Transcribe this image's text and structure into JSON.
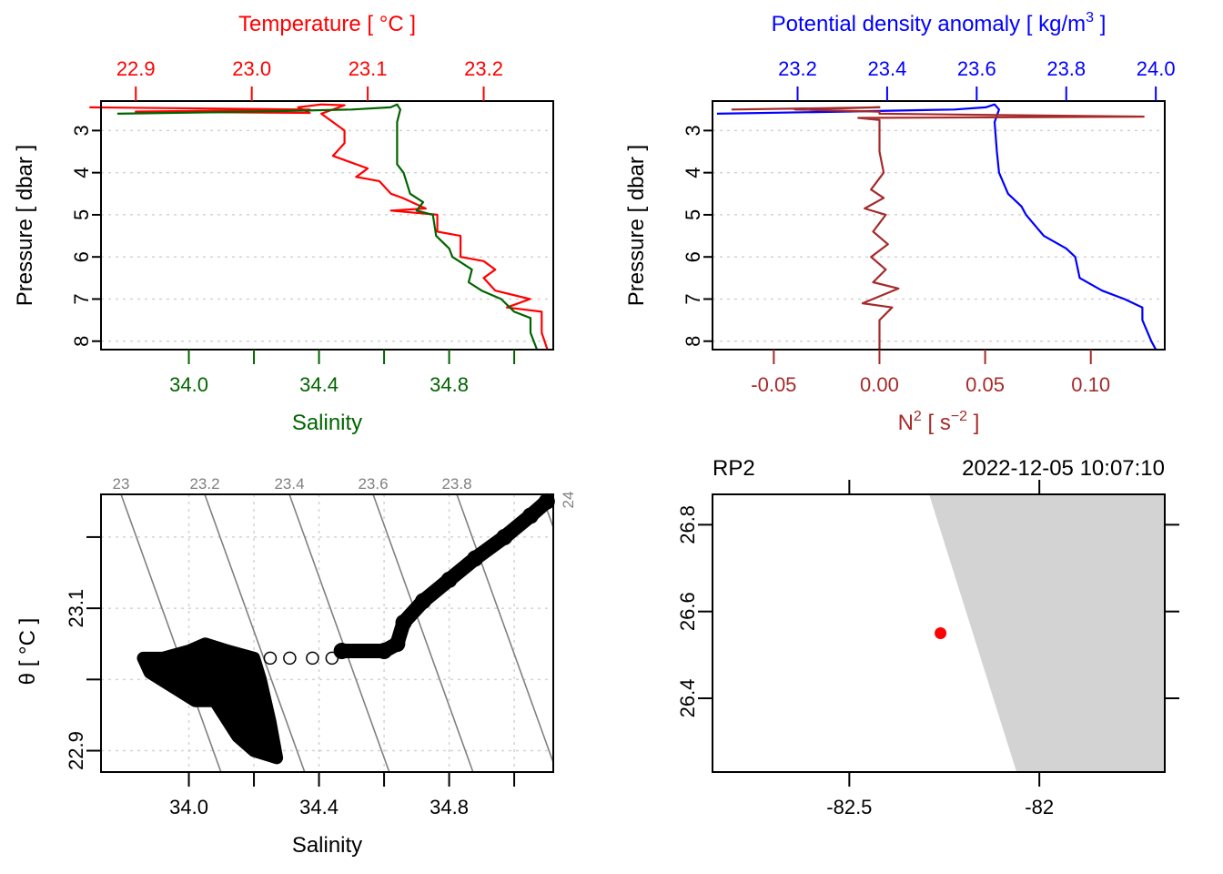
{
  "colors": {
    "temperature": "#ff0000",
    "salinity": "#006400",
    "density": "#0000ff",
    "n2": "#a52a2a",
    "isopycnal": "#808080",
    "grid": "#d3d3d3",
    "land": "#d3d3d3",
    "station": "#ff0000",
    "axis": "#000000"
  },
  "chart_data": [
    {
      "id": "ts-profile",
      "type": "line",
      "title": "",
      "ylabel": "Pressure [ dbar ]",
      "ylim": [
        8.2,
        2.3
      ],
      "yticks": [
        3,
        4,
        5,
        6,
        7,
        8
      ],
      "ytick_labels": [
        "3",
        "4",
        "5",
        "6",
        "7",
        "8"
      ],
      "grid": "horizontal dotted",
      "top_axis": {
        "label": "Temperature [ °C ]",
        "range": [
          22.87,
          23.26
        ],
        "ticks": [
          22.9,
          23.0,
          23.1,
          23.2
        ],
        "tick_labels": [
          "22.9",
          "23.0",
          "23.1",
          "23.2"
        ]
      },
      "bottom_axis": {
        "label": "Salinity",
        "range": [
          33.73,
          35.12
        ],
        "ticks": [
          34.0,
          34.2,
          34.4,
          34.6,
          34.8,
          35.0
        ],
        "tick_labels": [
          "34.0",
          "",
          "34.4",
          "",
          "34.8",
          ""
        ]
      },
      "series": [
        {
          "name": "Temperature",
          "axis": "top",
          "points": [
            [
              22.86,
              2.45
            ],
            [
              23.05,
              2.5
            ],
            [
              22.9,
              2.55
            ],
            [
              23.05,
              2.58
            ],
            [
              23.04,
              2.45
            ],
            [
              23.06,
              2.38
            ],
            [
              23.08,
              2.4
            ],
            [
              23.06,
              2.6
            ],
            [
              23.07,
              2.8
            ],
            [
              23.08,
              3.0
            ],
            [
              23.08,
              3.3
            ],
            [
              23.07,
              3.6
            ],
            [
              23.08,
              3.7
            ],
            [
              23.1,
              3.9
            ],
            [
              23.09,
              4.1
            ],
            [
              23.11,
              4.2
            ],
            [
              23.12,
              4.5
            ],
            [
              23.13,
              4.6
            ],
            [
              23.15,
              4.85
            ],
            [
              23.12,
              4.9
            ],
            [
              23.16,
              5.0
            ],
            [
              23.16,
              5.4
            ],
            [
              23.18,
              5.5
            ],
            [
              23.18,
              6.0
            ],
            [
              23.2,
              6.1
            ],
            [
              23.21,
              6.3
            ],
            [
              23.2,
              6.5
            ],
            [
              23.21,
              6.8
            ],
            [
              23.24,
              7.0
            ],
            [
              23.22,
              7.2
            ],
            [
              23.25,
              7.3
            ],
            [
              23.25,
              7.8
            ],
            [
              23.255,
              8.2
            ]
          ]
        },
        {
          "name": "Salinity",
          "axis": "bottom",
          "points": [
            [
              33.78,
              2.6
            ],
            [
              34.2,
              2.55
            ],
            [
              34.5,
              2.5
            ],
            [
              34.62,
              2.45
            ],
            [
              34.64,
              2.38
            ],
            [
              34.65,
              2.5
            ],
            [
              34.64,
              2.8
            ],
            [
              34.64,
              3.3
            ],
            [
              34.64,
              3.8
            ],
            [
              34.66,
              4.0
            ],
            [
              34.68,
              4.5
            ],
            [
              34.72,
              4.7
            ],
            [
              34.7,
              4.9
            ],
            [
              34.75,
              5.0
            ],
            [
              34.76,
              5.5
            ],
            [
              34.8,
              5.8
            ],
            [
              34.81,
              6.0
            ],
            [
              34.87,
              6.3
            ],
            [
              34.86,
              6.6
            ],
            [
              34.9,
              6.8
            ],
            [
              34.96,
              7.0
            ],
            [
              35.0,
              7.3
            ],
            [
              35.05,
              7.45
            ],
            [
              35.05,
              7.8
            ],
            [
              35.07,
              8.2
            ]
          ]
        }
      ]
    },
    {
      "id": "density-n2-profile",
      "type": "line",
      "title": "",
      "ylabel": "Pressure [ dbar ]",
      "ylim": [
        8.2,
        2.3
      ],
      "yticks": [
        3,
        4,
        5,
        6,
        7,
        8
      ],
      "ytick_labels": [
        "3",
        "4",
        "5",
        "6",
        "7",
        "8"
      ],
      "grid": "horizontal dotted",
      "top_axis": {
        "label": "Potential density anomaly [ kg/m³ ]",
        "label_parts": {
          "main": "Potential density anomaly [ kg/m",
          "sup": "3",
          "end": " ]"
        },
        "range": [
          23.01,
          24.02
        ],
        "ticks": [
          23.2,
          23.4,
          23.6,
          23.8,
          24.0
        ],
        "tick_labels": [
          "23.2",
          "23.4",
          "23.6",
          "23.8",
          "24.0"
        ]
      },
      "bottom_axis": {
        "label": "N² [ s⁻² ]",
        "label_parts": {
          "main": "N",
          "sup": "2",
          "mid": " [ s",
          "sup2": "−2",
          "end": " ]"
        },
        "range": [
          -0.079,
          0.135
        ],
        "ticks": [
          -0.05,
          0.0,
          0.05,
          0.1
        ],
        "tick_labels": [
          "-0.05",
          "0.00",
          "0.05",
          "0.10"
        ]
      },
      "series": [
        {
          "name": "Potential density anomaly",
          "axis": "top",
          "points": [
            [
              23.02,
              2.6
            ],
            [
              23.3,
              2.55
            ],
            [
              23.55,
              2.5
            ],
            [
              23.62,
              2.45
            ],
            [
              23.64,
              2.38
            ],
            [
              23.65,
              2.5
            ],
            [
              23.64,
              2.8
            ],
            [
              23.645,
              3.5
            ],
            [
              23.65,
              4.0
            ],
            [
              23.67,
              4.5
            ],
            [
              23.7,
              4.8
            ],
            [
              23.71,
              5.0
            ],
            [
              23.75,
              5.5
            ],
            [
              23.8,
              5.8
            ],
            [
              23.82,
              6.0
            ],
            [
              23.83,
              6.5
            ],
            [
              23.88,
              6.8
            ],
            [
              23.93,
              7.0
            ],
            [
              23.97,
              7.2
            ],
            [
              23.97,
              7.5
            ],
            [
              23.99,
              8.0
            ],
            [
              24.0,
              8.2
            ]
          ]
        },
        {
          "name": "N2",
          "axis": "bottom",
          "points": [
            [
              -0.07,
              2.5
            ],
            [
              0.0,
              2.45
            ],
            [
              -0.04,
              2.5
            ],
            [
              0.0,
              2.55
            ],
            [
              0.0,
              2.6
            ],
            [
              0.125,
              2.67
            ],
            [
              -0.01,
              2.7
            ],
            [
              0.0,
              2.75
            ],
            [
              0.0,
              3.5
            ],
            [
              0.002,
              4.0
            ],
            [
              -0.004,
              4.4
            ],
            [
              0.002,
              4.6
            ],
            [
              -0.007,
              4.85
            ],
            [
              0.003,
              5.0
            ],
            [
              -0.003,
              5.4
            ],
            [
              0.004,
              5.7
            ],
            [
              -0.004,
              6.0
            ],
            [
              0.003,
              6.3
            ],
            [
              -0.003,
              6.6
            ],
            [
              0.009,
              6.75
            ],
            [
              -0.008,
              7.1
            ],
            [
              0.006,
              7.2
            ],
            [
              0.0,
              7.5
            ],
            [
              0.0,
              8.2
            ]
          ]
        }
      ]
    },
    {
      "id": "ts-diagram",
      "type": "scatter",
      "title": "",
      "xlabel": "Salinity",
      "ylabel": "θ [ °C ]",
      "xlim": [
        33.73,
        35.12
      ],
      "ylim": [
        22.87,
        23.26
      ],
      "xticks": [
        34.0,
        34.2,
        34.4,
        34.6,
        34.8,
        35.0
      ],
      "xtick_labels": [
        "34.0",
        "",
        "34.4",
        "",
        "34.8",
        ""
      ],
      "yticks": [
        22.9,
        23.0,
        23.1,
        23.2
      ],
      "ytick_labels": [
        "22.9",
        "",
        "23.1",
        ""
      ],
      "grid": "dotted both",
      "isopycnals": {
        "values": [
          23.0,
          23.2,
          23.4,
          23.6,
          23.8,
          24.0
        ],
        "labels": [
          "23",
          "23.2",
          "23.4",
          "23.6",
          "23.8",
          "24"
        ]
      },
      "clusters": [
        {
          "name": "surface-cluster",
          "salinity_range": [
            33.85,
            34.25
          ],
          "theta_range": [
            22.89,
            23.05
          ]
        },
        {
          "name": "gap-points",
          "points": [
            [
              34.25,
              23.03
            ],
            [
              34.31,
              23.03
            ],
            [
              34.38,
              23.03
            ],
            [
              34.44,
              23.03
            ]
          ]
        },
        {
          "name": "subsurface-trend",
          "points": [
            [
              34.47,
              23.04
            ],
            [
              34.6,
              23.04
            ],
            [
              34.64,
              23.05
            ],
            [
              34.66,
              23.08
            ],
            [
              34.72,
              23.11
            ],
            [
              34.8,
              23.14
            ],
            [
              34.88,
              23.17
            ],
            [
              34.97,
              23.2
            ],
            [
              35.05,
              23.23
            ],
            [
              35.1,
              23.25
            ]
          ]
        }
      ]
    },
    {
      "id": "station-map",
      "type": "scatter",
      "title_left": "RP2",
      "title_right": "2022-12-05 10:07:10",
      "xlim": [
        -82.86,
        -81.67
      ],
      "ylim": [
        26.23,
        26.87
      ],
      "xticks": [
        -82.5,
        -82.0
      ],
      "xtick_labels": [
        "-82.5",
        "-82"
      ],
      "yticks": [
        26.4,
        26.6,
        26.8
      ],
      "ytick_labels": [
        "26.4",
        "26.6",
        "26.8"
      ],
      "land_polygon": [
        [
          -82.29,
          26.87
        ],
        [
          -81.67,
          26.87
        ],
        [
          -81.67,
          26.23
        ],
        [
          -82.06,
          26.23
        ]
      ],
      "station": {
        "lon": -82.26,
        "lat": 26.55
      }
    }
  ]
}
